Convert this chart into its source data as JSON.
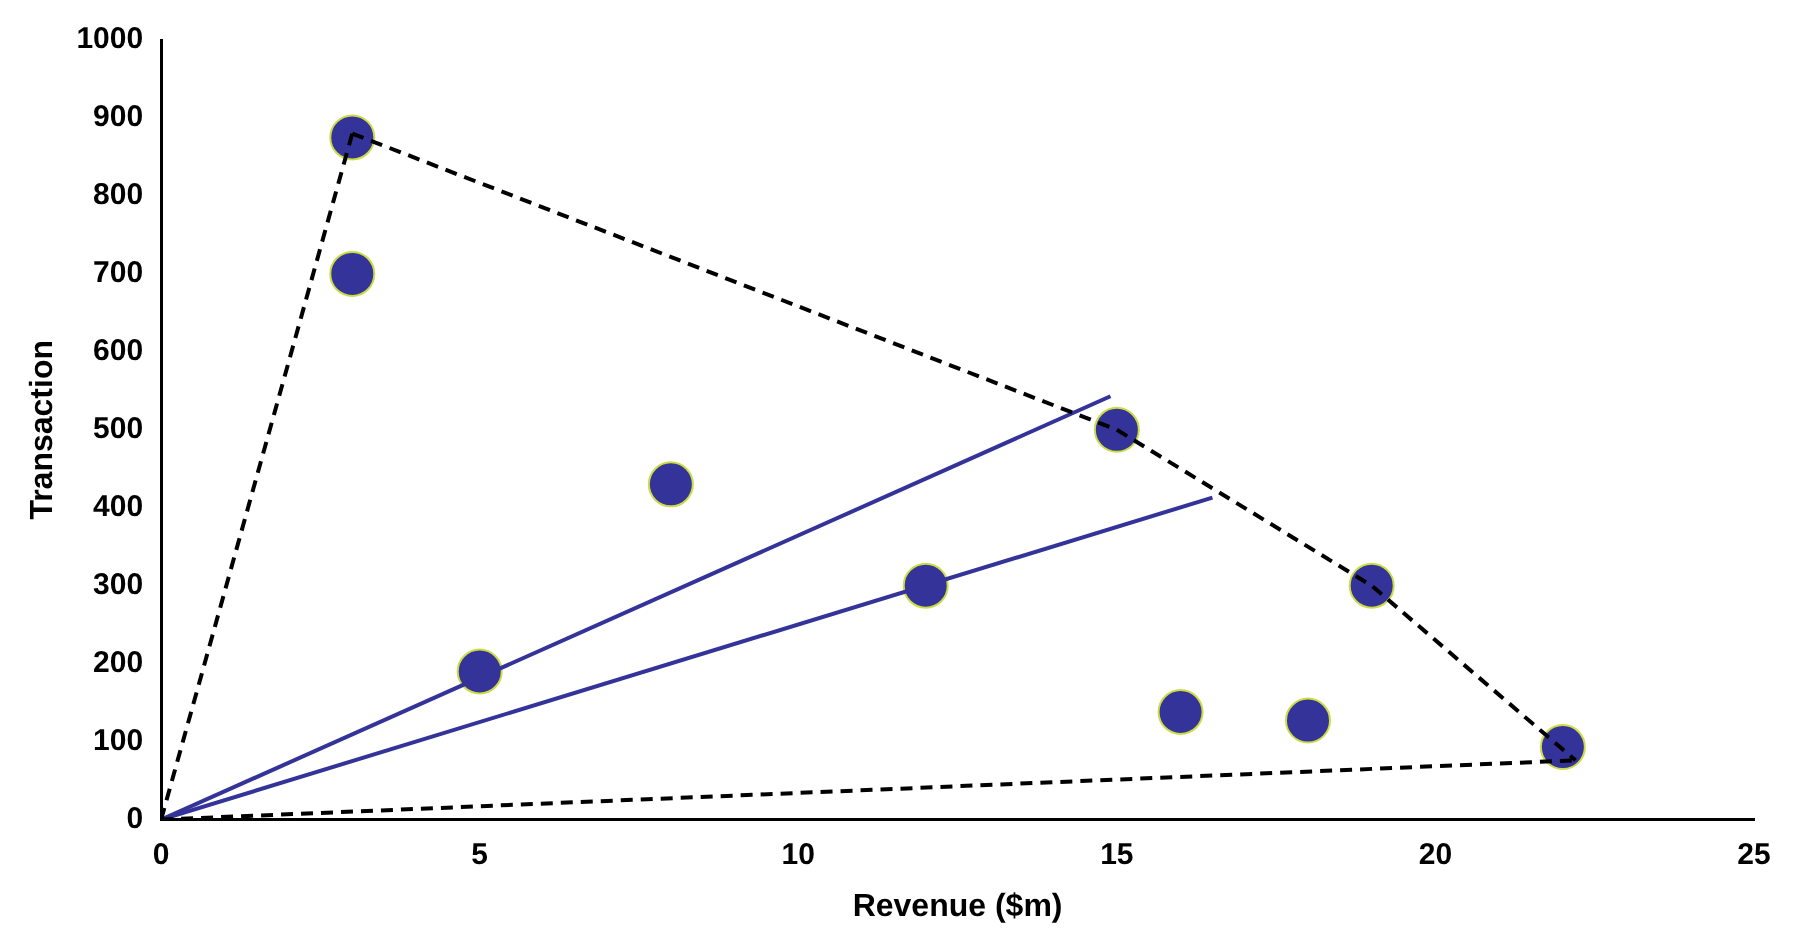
{
  "chart_data": {
    "type": "scatter",
    "xlabel": "Revenue ($m)",
    "ylabel": "Transaction",
    "xlim": [
      0,
      25
    ],
    "xticks": [
      0,
      5,
      10,
      15,
      20,
      25
    ],
    "ylim": [
      0,
      1000
    ],
    "yticks": [
      0,
      100,
      200,
      300,
      400,
      500,
      600,
      700,
      800,
      900,
      1000
    ],
    "grid": false,
    "legend": false,
    "series": [
      {
        "type": "line",
        "color": "#000000",
        "line_style": "dashed",
        "marker": "none",
        "x": [
          0,
          3
        ],
        "values": [
          0,
          880
        ]
      },
      {
        "type": "line",
        "color": "#000000",
        "line_style": "dashed",
        "marker": "none",
        "x": [
          3,
          15,
          19,
          22.2
        ],
        "values": [
          880,
          500,
          300,
          76
        ]
      },
      {
        "type": "line",
        "color": "#000000",
        "line_style": "dashed",
        "marker": "none",
        "x": [
          0,
          22.2
        ],
        "values": [
          0,
          76
        ]
      },
      {
        "type": "line",
        "color": "#333399",
        "line_style": "solid",
        "marker": "none",
        "x": [
          0,
          14.9
        ],
        "values": [
          0,
          543
        ]
      },
      {
        "type": "line",
        "color": "#333399",
        "line_style": "solid",
        "marker": "none",
        "x": [
          0,
          16.5
        ],
        "values": [
          0,
          413
        ]
      },
      {
        "color": "#333399",
        "marker": "circle",
        "x": [
          3,
          3,
          5,
          8,
          12,
          15,
          16,
          18,
          19,
          22
        ],
        "values": [
          875,
          700,
          190,
          430,
          300,
          500,
          138,
          127,
          300,
          93
        ]
      }
    ]
  }
}
